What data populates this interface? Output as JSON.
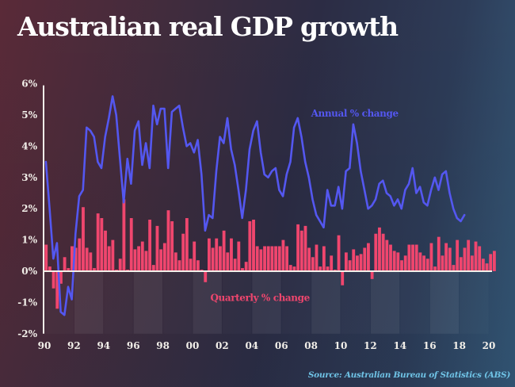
{
  "title": "Australian real GDP growth",
  "source": "Source: Australian Bureau of Statistics (ABS)",
  "chart_data": {
    "type": "bar+line",
    "title": "Australian real GDP growth",
    "xlabel": "",
    "ylabel": "",
    "ylim": [
      -2,
      6
    ],
    "xlim": [
      1990,
      2020
    ],
    "y_ticks": [
      "6%",
      "5%",
      "4%",
      "3%",
      "2%",
      "1%",
      "0%",
      "-1%",
      "-2%"
    ],
    "y_tick_values": [
      6,
      5,
      4,
      3,
      2,
      1,
      0,
      -1,
      -2
    ],
    "x_ticks": [
      "90",
      "92",
      "94",
      "96",
      "98",
      "00",
      "02",
      "04",
      "06",
      "08",
      "10",
      "12",
      "14",
      "16",
      "18",
      "20"
    ],
    "x_tick_values": [
      1990,
      1992,
      1994,
      1996,
      1998,
      2000,
      2002,
      2004,
      2006,
      2008,
      2010,
      2012,
      2014,
      2016,
      2018,
      2020
    ],
    "colors": {
      "annual": "#5457f0",
      "quarterly": "#f0466e",
      "axis": "#f2efe9"
    },
    "series": [
      {
        "name": "Quarterly % change",
        "type": "bar",
        "start": 1990.0,
        "step": 0.25,
        "values": [
          0.85,
          0.15,
          -0.55,
          -1.2,
          -0.4,
          0.45,
          0.1,
          0.8,
          0.75,
          1.05,
          2.05,
          0.75,
          0.6,
          0.1,
          1.85,
          1.7,
          1.3,
          0.8,
          1.0,
          0.05,
          0.4,
          2.3,
          0.05,
          1.7,
          0.7,
          0.8,
          0.95,
          0.65,
          1.65,
          0.2,
          1.45,
          0.7,
          0.9,
          1.95,
          1.6,
          0.6,
          0.35,
          1.2,
          1.7,
          0.4,
          0.95,
          0.35,
          0.05,
          -0.35,
          1.05,
          0.75,
          1.05,
          0.8,
          1.3,
          0.6,
          1.05,
          0.4,
          0.95,
          0.1,
          0.3,
          1.6,
          1.65,
          0.8,
          0.7,
          0.8,
          0.8,
          0.8,
          0.8,
          0.8,
          1.0,
          0.8,
          0.2,
          0.15,
          1.5,
          1.3,
          1.45,
          0.75,
          0.45,
          0.85,
          0.15,
          0.8,
          0.15,
          0.5,
          0.05,
          1.15,
          -0.45,
          0.6,
          0.35,
          0.7,
          0.5,
          0.55,
          0.75,
          0.9,
          -0.25,
          1.2,
          1.4,
          1.2,
          1.0,
          0.85,
          0.65,
          0.6,
          0.35,
          0.5,
          0.85,
          0.85,
          0.85,
          0.6,
          0.5,
          0.4,
          0.9,
          0.15,
          1.1,
          0.5,
          0.9,
          0.75,
          0.2,
          1.0,
          0.45,
          0.75,
          1.0,
          0.5,
          0.95,
          0.8,
          0.4,
          0.25,
          0.55,
          0.65
        ]
      },
      {
        "name": "Annual % change",
        "type": "line",
        "start": 1990.0,
        "step": 0.25,
        "values": [
          3.5,
          2.0,
          0.4,
          0.9,
          -1.3,
          -1.4,
          -0.5,
          -0.9,
          1.2,
          2.4,
          2.6,
          4.6,
          4.5,
          4.3,
          3.5,
          3.3,
          4.3,
          4.9,
          5.6,
          5.0,
          3.6,
          2.2,
          3.6,
          2.8,
          4.5,
          4.8,
          3.4,
          4.1,
          3.3,
          5.3,
          4.7,
          5.2,
          5.2,
          3.3,
          5.1,
          5.2,
          5.3,
          4.6,
          4.0,
          4.1,
          3.8,
          4.2,
          3.1,
          1.3,
          1.8,
          1.7,
          3.2,
          4.3,
          4.1,
          4.9,
          3.9,
          3.4,
          2.6,
          1.7,
          2.6,
          3.9,
          4.5,
          4.8,
          3.8,
          3.1,
          3.0,
          3.2,
          3.3,
          2.6,
          2.4,
          3.1,
          3.5,
          4.6,
          4.9,
          4.3,
          3.5,
          3.0,
          2.3,
          1.8,
          1.6,
          1.4,
          2.6,
          2.1,
          2.1,
          2.7,
          2.0,
          3.2,
          3.3,
          4.7,
          4.1,
          3.2,
          2.6,
          2.0,
          2.1,
          2.3,
          2.8,
          2.9,
          2.5,
          2.4,
          2.1,
          2.3,
          2.0,
          2.6,
          2.8,
          3.3,
          2.5,
          2.7,
          2.2,
          2.1,
          2.6,
          3.0,
          2.6,
          3.1,
          3.2,
          2.5,
          2.0,
          1.7,
          1.6,
          1.8
        ]
      }
    ],
    "annotations": [
      {
        "text": "Annual % change",
        "series": "Annual % change",
        "x": 2008.0,
        "y": 5.0
      },
      {
        "text": "Quarterly % change",
        "series": "Quarterly % change",
        "x": 2001.2,
        "y": -0.9
      }
    ],
    "grid": false,
    "background_bands": "alternating shaded 2-year bands below zero line",
    "legend": "inline-labels"
  }
}
